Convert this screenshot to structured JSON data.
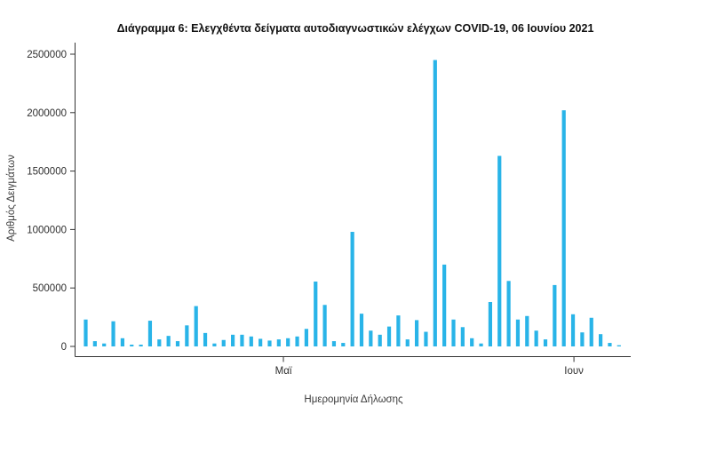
{
  "chart_data": {
    "type": "bar",
    "title": "Διάγραμμα 6: Ελεγχθέντα δείγματα αυτοδιαγνωστικών ελέγχων COVID-19, 06 Ιουνίου 2021",
    "xlabel": "Ημερομηνία Δήλωσης",
    "ylabel": "Αριθμός Δειγμάτων",
    "ylim": [
      0,
      2500000
    ],
    "y_ticks": [
      0,
      500000,
      1000000,
      1500000,
      2000000,
      2500000
    ],
    "x_ticks": [
      {
        "label": "Μαϊ",
        "index": 21.5
      },
      {
        "label": "Ιουν",
        "index": 53.1
      }
    ],
    "grid": false,
    "legend": "none",
    "bar_color": "#29b4e8",
    "background": "#ffffff",
    "values": [
      230000,
      45000,
      25000,
      215000,
      70000,
      15000,
      15000,
      220000,
      60000,
      90000,
      45000,
      180000,
      345000,
      115000,
      25000,
      55000,
      100000,
      100000,
      85000,
      65000,
      50000,
      60000,
      70000,
      85000,
      150000,
      555000,
      355000,
      45000,
      30000,
      980000,
      280000,
      135000,
      100000,
      170000,
      265000,
      60000,
      225000,
      125000,
      2450000,
      700000,
      230000,
      165000,
      70000,
      25000,
      380000,
      1630000,
      560000,
      230000,
      260000,
      135000,
      60000,
      525000,
      2020000,
      275000,
      120000,
      245000,
      105000,
      30000,
      10000
    ]
  }
}
